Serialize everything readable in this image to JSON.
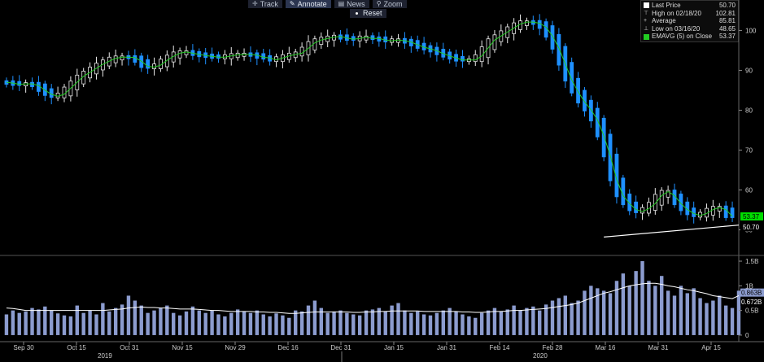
{
  "toolbar": {
    "buttons": [
      {
        "label": "Track",
        "icon": "crosshair-icon"
      },
      {
        "label": "Annotate",
        "icon": "pencil-icon"
      },
      {
        "label": "News",
        "icon": "news-icon"
      },
      {
        "label": "Zoom",
        "icon": "magnifier-icon"
      }
    ],
    "reset_label": "Reset"
  },
  "legend": [
    {
      "label": "Last Price",
      "value": "50.70",
      "marker": "white-square"
    },
    {
      "label": "High on 02/18/20",
      "value": "102.81",
      "marker": "high-marker"
    },
    {
      "label": "Average",
      "value": "85.81",
      "marker": "average-marker"
    },
    {
      "label": "Low on 03/16/20",
      "value": "48.65",
      "marker": "low-marker"
    },
    {
      "label": "EMAVG (5)  on Close",
      "value": "53.37",
      "marker": "green-square"
    }
  ],
  "colors": {
    "up": "#e8e8e8",
    "down": "#1e90ff",
    "ema": "#22cc22",
    "volume": "#8c9ccf",
    "volume_avg": "#ffffff",
    "trendline": "#ffffff",
    "ema_badge": "#00dd00"
  },
  "chart_data": [
    {
      "type": "candlestick",
      "yticks": [
        50,
        60,
        70,
        80,
        90,
        100
      ],
      "ylim": [
        44,
        106
      ],
      "last_price_label": "50.70",
      "ema_label": "53.37",
      "series": [
        {
          "name": "EMAVG (5)",
          "kind": "line",
          "values": [
            87.0,
            86.8,
            86.5,
            86.6,
            86.6,
            86.2,
            85.0,
            84.0,
            83.5,
            84.0,
            85.5,
            87.0,
            88.5,
            89.5,
            90.5,
            91.5,
            92.3,
            93.0,
            93.3,
            93.3,
            93.2,
            92.3,
            91.0,
            90.8,
            91.3,
            92.5,
            93.5,
            94.3,
            94.6,
            94.3,
            94.0,
            93.7,
            93.5,
            93.3,
            93.3,
            93.6,
            93.9,
            94.0,
            94.0,
            93.8,
            93.3,
            93.1,
            92.6,
            93.1,
            93.6,
            94.0,
            94.3,
            95.5,
            96.9,
            97.6,
            98.0,
            98.3,
            98.5,
            98.1,
            97.8,
            98.0,
            98.3,
            98.0,
            98.0,
            97.6,
            97.4,
            97.6,
            97.4,
            97.1,
            96.4,
            95.8,
            95.4,
            94.9,
            94.2,
            93.6,
            93.1,
            92.6,
            92.6,
            92.6,
            93.6,
            95.6,
            97.6,
            98.6,
            99.6,
            100.6,
            101.6,
            102.1,
            102.1,
            101.8,
            100.8,
            98.6,
            95.6,
            91.6,
            87.6,
            84.6,
            82.1,
            80.1,
            77.6,
            73.6,
            68.6,
            62.6,
            58.6,
            56.6,
            55.1,
            54.6,
            55.3,
            56.6,
            58.6,
            59.6,
            58.6,
            56.6,
            55.1,
            54.1,
            53.6,
            54.1,
            55.1,
            55.6,
            55.1,
            53.37
          ]
        }
      ]
    },
    {
      "type": "bar",
      "series": [
        {
          "name": "volume",
          "values": [
            0.42,
            0.5,
            0.45,
            0.48,
            0.55,
            0.52,
            0.58,
            0.5,
            0.44,
            0.4,
            0.38,
            0.6,
            0.45,
            0.5,
            0.42,
            0.65,
            0.48,
            0.55,
            0.62,
            0.8,
            0.7,
            0.6,
            0.45,
            0.5,
            0.55,
            0.6,
            0.45,
            0.4,
            0.48,
            0.58,
            0.5,
            0.45,
            0.5,
            0.42,
            0.38,
            0.45,
            0.52,
            0.48,
            0.45,
            0.5,
            0.42,
            0.38,
            0.44,
            0.4,
            0.35,
            0.5,
            0.48,
            0.6,
            0.7,
            0.55,
            0.45,
            0.48,
            0.5,
            0.45,
            0.42,
            0.4,
            0.5,
            0.52,
            0.55,
            0.48,
            0.6,
            0.65,
            0.5,
            0.45,
            0.48,
            0.42,
            0.4,
            0.45,
            0.5,
            0.55,
            0.48,
            0.42,
            0.38,
            0.35,
            0.45,
            0.5,
            0.55,
            0.48,
            0.52,
            0.6,
            0.5,
            0.55,
            0.58,
            0.5,
            0.62,
            0.7,
            0.75,
            0.8,
            0.65,
            0.7,
            0.9,
            1.0,
            0.95,
            0.9,
            0.85,
            1.1,
            1.25,
            1.0,
            1.3,
            1.5,
            1.1,
            1.0,
            1.2,
            0.9,
            0.8,
            1.0,
            0.85,
            0.95,
            0.75,
            0.65,
            0.7,
            0.8,
            0.6,
            0.55,
            0.9
          ]
        },
        {
          "name": "volume average",
          "kind": "line",
          "values": [
            0.55,
            0.54,
            0.52,
            0.5,
            0.5,
            0.5,
            0.5,
            0.5,
            0.5,
            0.5,
            0.5,
            0.5,
            0.5,
            0.5,
            0.5,
            0.5,
            0.51,
            0.52,
            0.53,
            0.55,
            0.56,
            0.57,
            0.56,
            0.56,
            0.55,
            0.55,
            0.54,
            0.53,
            0.53,
            0.53,
            0.52,
            0.51,
            0.5,
            0.5,
            0.49,
            0.48,
            0.48,
            0.48,
            0.48,
            0.47,
            0.47,
            0.46,
            0.46,
            0.45,
            0.44,
            0.44,
            0.45,
            0.46,
            0.47,
            0.47,
            0.47,
            0.47,
            0.47,
            0.47,
            0.46,
            0.46,
            0.47,
            0.47,
            0.48,
            0.48,
            0.49,
            0.49,
            0.49,
            0.49,
            0.49,
            0.48,
            0.48,
            0.48,
            0.48,
            0.48,
            0.48,
            0.47,
            0.47,
            0.46,
            0.46,
            0.47,
            0.48,
            0.48,
            0.49,
            0.5,
            0.5,
            0.51,
            0.52,
            0.53,
            0.54,
            0.56,
            0.58,
            0.6,
            0.62,
            0.65,
            0.7,
            0.75,
            0.8,
            0.85,
            0.88,
            0.92,
            0.96,
            1.0,
            1.02,
            1.04,
            1.05,
            1.05,
            1.03,
            1.0,
            0.98,
            0.95,
            0.92,
            0.9,
            0.87,
            0.84,
            0.8,
            0.78,
            0.76,
            0.74,
            0.8
          ]
        }
      ],
      "yticks": [
        {
          "v": 0,
          "label": "0"
        },
        {
          "v": 0.5,
          "label": "0.5B"
        },
        {
          "v": 1.0,
          "label": "1B"
        },
        {
          "v": 1.5,
          "label": "1.5B"
        }
      ],
      "ylim": [
        -0.1,
        1.55
      ],
      "value_labels": [
        {
          "v": 0.863,
          "label": "0.863B"
        },
        {
          "v": 0.672,
          "label": "0.672B"
        }
      ]
    }
  ],
  "xaxis": {
    "ticks": [
      "Sep 30",
      "Oct 15",
      "Oct 31",
      "Nov 15",
      "Nov 29",
      "Dec 16",
      "Dec 31",
      "Jan 15",
      "Jan 31",
      "Feb 14",
      "Feb 28",
      "Mar 16",
      "Mar 31",
      "Apr 15"
    ],
    "years": [
      "2019",
      "2020"
    ]
  }
}
